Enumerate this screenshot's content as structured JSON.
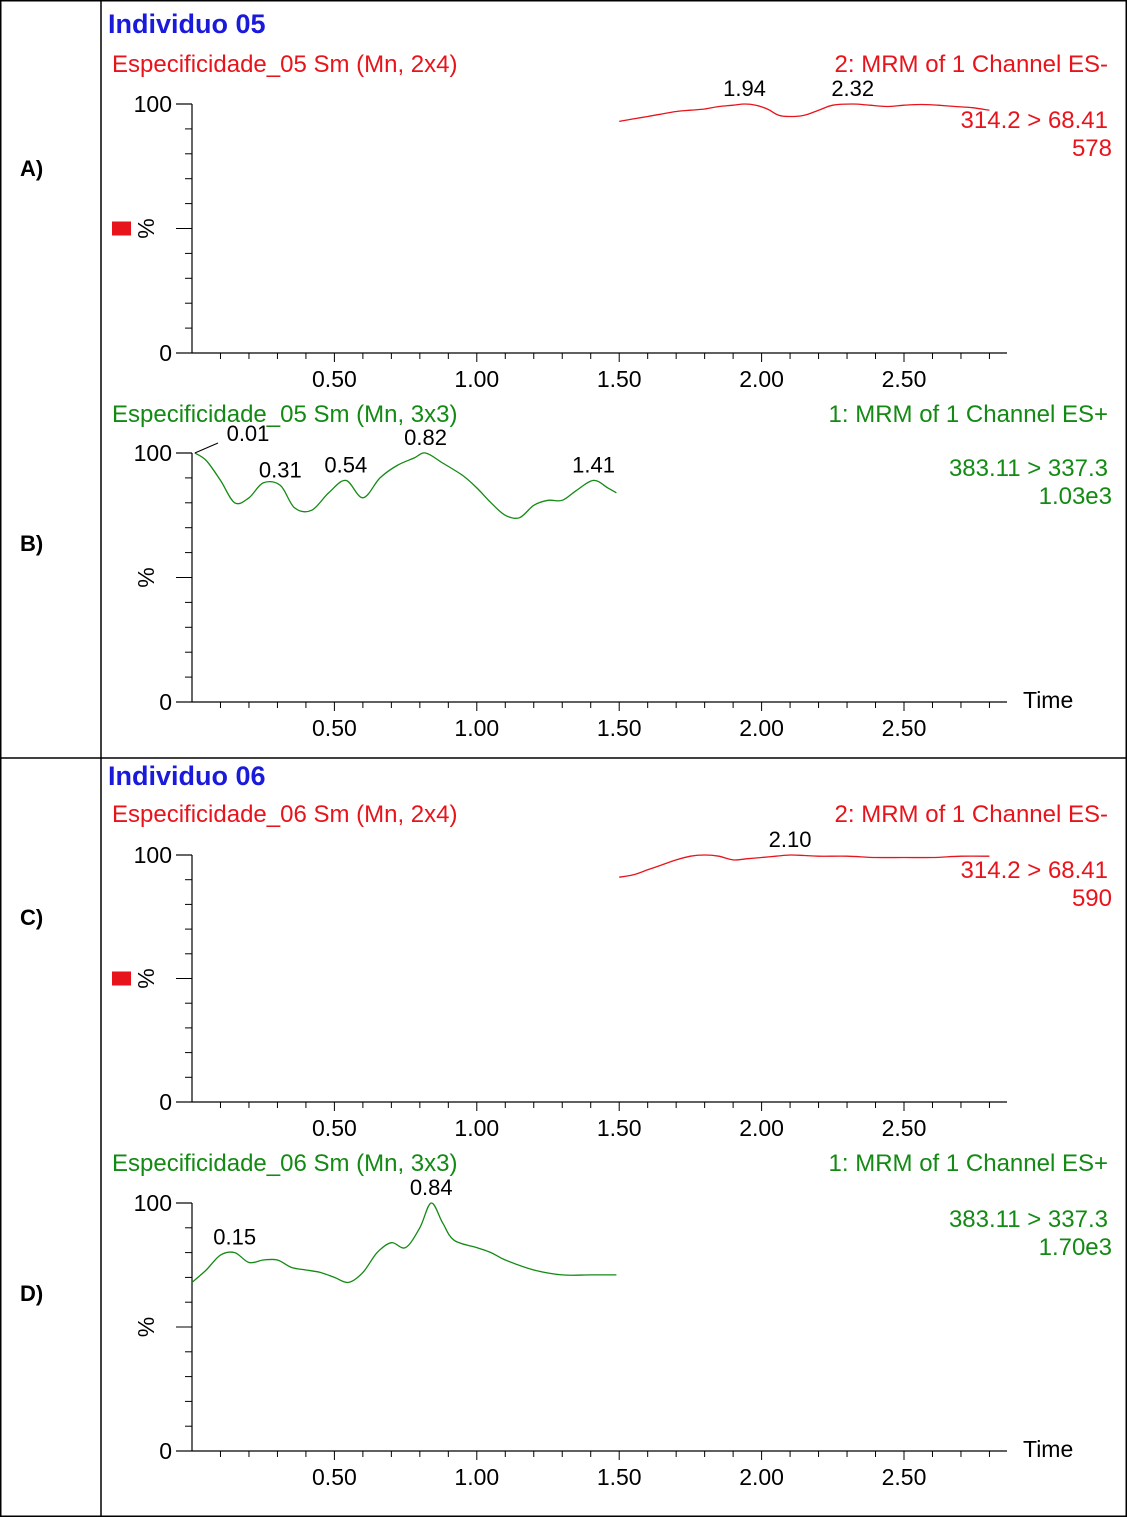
{
  "blocks": [
    {
      "heading": "Individuo 05",
      "panels": [
        {
          "letter": "A)",
          "sample": "Especificidade_05 Sm (Mn, 2x4)",
          "channel": "2: MRM of 1 Channel ES-",
          "transition": "314.2 > 68.41",
          "intensity": "578",
          "color": "#e8141b",
          "show_time_label": false,
          "has_square_marker": true
        },
        {
          "letter": "B)",
          "sample": "Especificidade_05 Sm (Mn, 3x3)",
          "channel": "1: MRM of 1 Channel ES+",
          "transition": "383.11 > 337.3",
          "intensity": "1.03e3",
          "color": "#138a13",
          "show_time_label": true,
          "has_square_marker": false
        }
      ]
    },
    {
      "heading": "Individuo 06",
      "panels": [
        {
          "letter": "C)",
          "sample": "Especificidade_06 Sm (Mn, 2x4)",
          "channel": "2: MRM of 1 Channel ES-",
          "transition": "314.2 > 68.41",
          "intensity": "590",
          "color": "#e8141b",
          "show_time_label": false,
          "has_square_marker": true
        },
        {
          "letter": "D)",
          "sample": "Especificidade_06 Sm (Mn, 3x3)",
          "channel": "1: MRM of 1 Channel ES+",
          "transition": "383.11 > 337.3",
          "intensity": "1.70e3",
          "color": "#138a13",
          "show_time_label": true,
          "has_square_marker": false
        }
      ]
    }
  ],
  "axis": {
    "y_tick_labels": [
      "100",
      "%",
      "0"
    ],
    "x_tick_labels": [
      "0.50",
      "1.00",
      "1.50",
      "2.00",
      "2.50"
    ],
    "time_label": "Time"
  },
  "heading_color": "#1a1adb",
  "chart_data": [
    {
      "id": "A",
      "type": "line",
      "xlabel": "Time",
      "ylabel": "%",
      "xlim": [
        0,
        2.82
      ],
      "ylim": [
        0,
        100
      ],
      "series": [
        {
          "x": [
            1.5,
            1.55,
            1.6,
            1.65,
            1.7,
            1.75,
            1.8,
            1.85,
            1.9,
            1.94,
            1.98,
            2.02,
            2.06,
            2.1,
            2.15,
            2.2,
            2.25,
            2.32,
            2.38,
            2.44,
            2.5,
            2.56,
            2.62,
            2.68,
            2.74,
            2.8
          ],
          "y": [
            93,
            94,
            95,
            96,
            97,
            97.5,
            98,
            99,
            99.5,
            100,
            99.5,
            98,
            95.5,
            95,
            95.5,
            97.5,
            99.5,
            100,
            99.5,
            99,
            99.5,
            99.8,
            99.5,
            99,
            98.5,
            97.5
          ]
        }
      ],
      "peak_labels": [
        {
          "x": 1.94,
          "y": 100,
          "text": "1.94"
        },
        {
          "x": 2.32,
          "y": 100,
          "text": "2.32"
        }
      ]
    },
    {
      "id": "B",
      "type": "line",
      "xlabel": "Time",
      "ylabel": "%",
      "xlim": [
        0,
        2.82
      ],
      "ylim": [
        0,
        100
      ],
      "series": [
        {
          "x": [
            0.01,
            0.05,
            0.1,
            0.15,
            0.2,
            0.25,
            0.31,
            0.36,
            0.42,
            0.48,
            0.54,
            0.6,
            0.66,
            0.72,
            0.78,
            0.82,
            0.88,
            0.95,
            1.0,
            1.05,
            1.1,
            1.15,
            1.2,
            1.25,
            1.3,
            1.35,
            1.41,
            1.46,
            1.49
          ],
          "y": [
            100,
            97,
            89,
            80,
            82,
            88,
            87,
            78,
            77,
            84,
            89,
            82,
            90,
            95,
            98,
            100,
            96,
            91,
            86,
            80,
            75,
            74,
            79,
            81,
            81,
            85,
            89,
            86,
            84
          ]
        }
      ],
      "peak_labels": [
        {
          "x": 0.01,
          "y": 100,
          "text": "0.01"
        },
        {
          "x": 0.31,
          "y": 87,
          "text": "0.31"
        },
        {
          "x": 0.54,
          "y": 89,
          "text": "0.54"
        },
        {
          "x": 0.82,
          "y": 100,
          "text": "0.82"
        },
        {
          "x": 1.41,
          "y": 89,
          "text": "1.41"
        }
      ]
    },
    {
      "id": "C",
      "type": "line",
      "xlabel": "Time",
      "ylabel": "%",
      "xlim": [
        0,
        2.82
      ],
      "ylim": [
        0,
        100
      ],
      "series": [
        {
          "x": [
            1.5,
            1.55,
            1.6,
            1.65,
            1.7,
            1.75,
            1.8,
            1.85,
            1.9,
            1.95,
            2.0,
            2.05,
            2.1,
            2.15,
            2.2,
            2.3,
            2.4,
            2.5,
            2.6,
            2.7,
            2.8
          ],
          "y": [
            91,
            92,
            94,
            96,
            98,
            99.5,
            100,
            99.5,
            98,
            98.5,
            99,
            99.5,
            100,
            99.8,
            99.5,
            99.5,
            99,
            99,
            99,
            99.5,
            99.5
          ]
        }
      ],
      "peak_labels": [
        {
          "x": 2.1,
          "y": 100,
          "text": "2.10"
        }
      ]
    },
    {
      "id": "D",
      "type": "line",
      "xlabel": "Time",
      "ylabel": "%",
      "xlim": [
        0,
        2.82
      ],
      "ylim": [
        0,
        100
      ],
      "series": [
        {
          "x": [
            0.0,
            0.05,
            0.1,
            0.15,
            0.2,
            0.25,
            0.3,
            0.35,
            0.4,
            0.45,
            0.5,
            0.55,
            0.6,
            0.65,
            0.7,
            0.75,
            0.8,
            0.84,
            0.88,
            0.92,
            1.0,
            1.05,
            1.1,
            1.2,
            1.3,
            1.4,
            1.49
          ],
          "y": [
            68,
            73,
            79,
            80,
            76,
            77,
            77,
            74,
            73,
            72,
            70,
            68,
            72,
            80,
            84,
            82,
            90,
            100,
            92,
            85,
            82,
            80,
            77,
            73,
            71,
            71,
            71
          ]
        }
      ],
      "peak_labels": [
        {
          "x": 0.15,
          "y": 80,
          "text": "0.15"
        },
        {
          "x": 0.84,
          "y": 100,
          "text": "0.84"
        }
      ]
    }
  ]
}
